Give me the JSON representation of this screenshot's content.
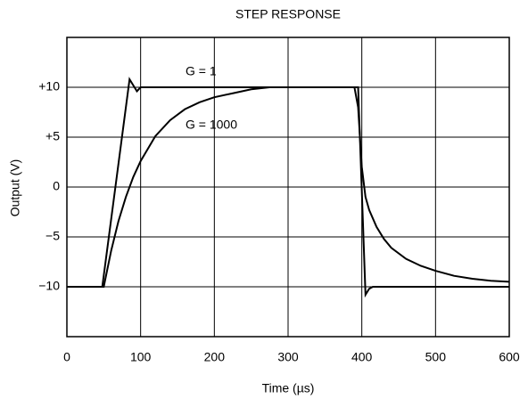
{
  "chart_data": {
    "type": "line",
    "title": "STEP RESPONSE",
    "x_label": "Time (µs)",
    "y_label": "Output (V)",
    "xlim": [
      0,
      600
    ],
    "xticks": [
      0,
      100,
      200,
      300,
      400,
      500,
      600
    ],
    "ylim": [
      -15,
      15
    ],
    "yticks": [
      {
        "value": 10,
        "label": "+10"
      },
      {
        "value": 5,
        "label": "+5"
      },
      0,
      {
        "value": -5,
        "label": "−5"
      },
      {
        "value": -10,
        "label": "−10"
      }
    ],
    "grid": true,
    "series": [
      {
        "name": "G = 1",
        "color": "#000000",
        "x": [
          0,
          48,
          85,
          90,
          95,
          100,
          390,
          395,
          405,
          410,
          415,
          600
        ],
        "values": [
          -10,
          -10,
          10.8,
          10.2,
          9.6,
          10,
          10,
          10,
          -10.8,
          -10.2,
          -10,
          -10
        ]
      },
      {
        "name": "G = 1000",
        "color": "#000000",
        "x": [
          0,
          50,
          60,
          70,
          80,
          90,
          100,
          120,
          140,
          160,
          180,
          200,
          225,
          250,
          275,
          390,
          395,
          400,
          405,
          410,
          420,
          430,
          440,
          460,
          480,
          500,
          525,
          550,
          575,
          600
        ],
        "values": [
          -10,
          -10,
          -6.4,
          -3.4,
          -1,
          1,
          2.6,
          5.1,
          6.7,
          7.8,
          8.5,
          9,
          9.4,
          9.8,
          10,
          10,
          8,
          2,
          -1,
          -2.3,
          -4,
          -5.2,
          -6.1,
          -7.2,
          -7.9,
          -8.4,
          -8.9,
          -9.2,
          -9.4,
          -9.5
        ]
      }
    ]
  }
}
